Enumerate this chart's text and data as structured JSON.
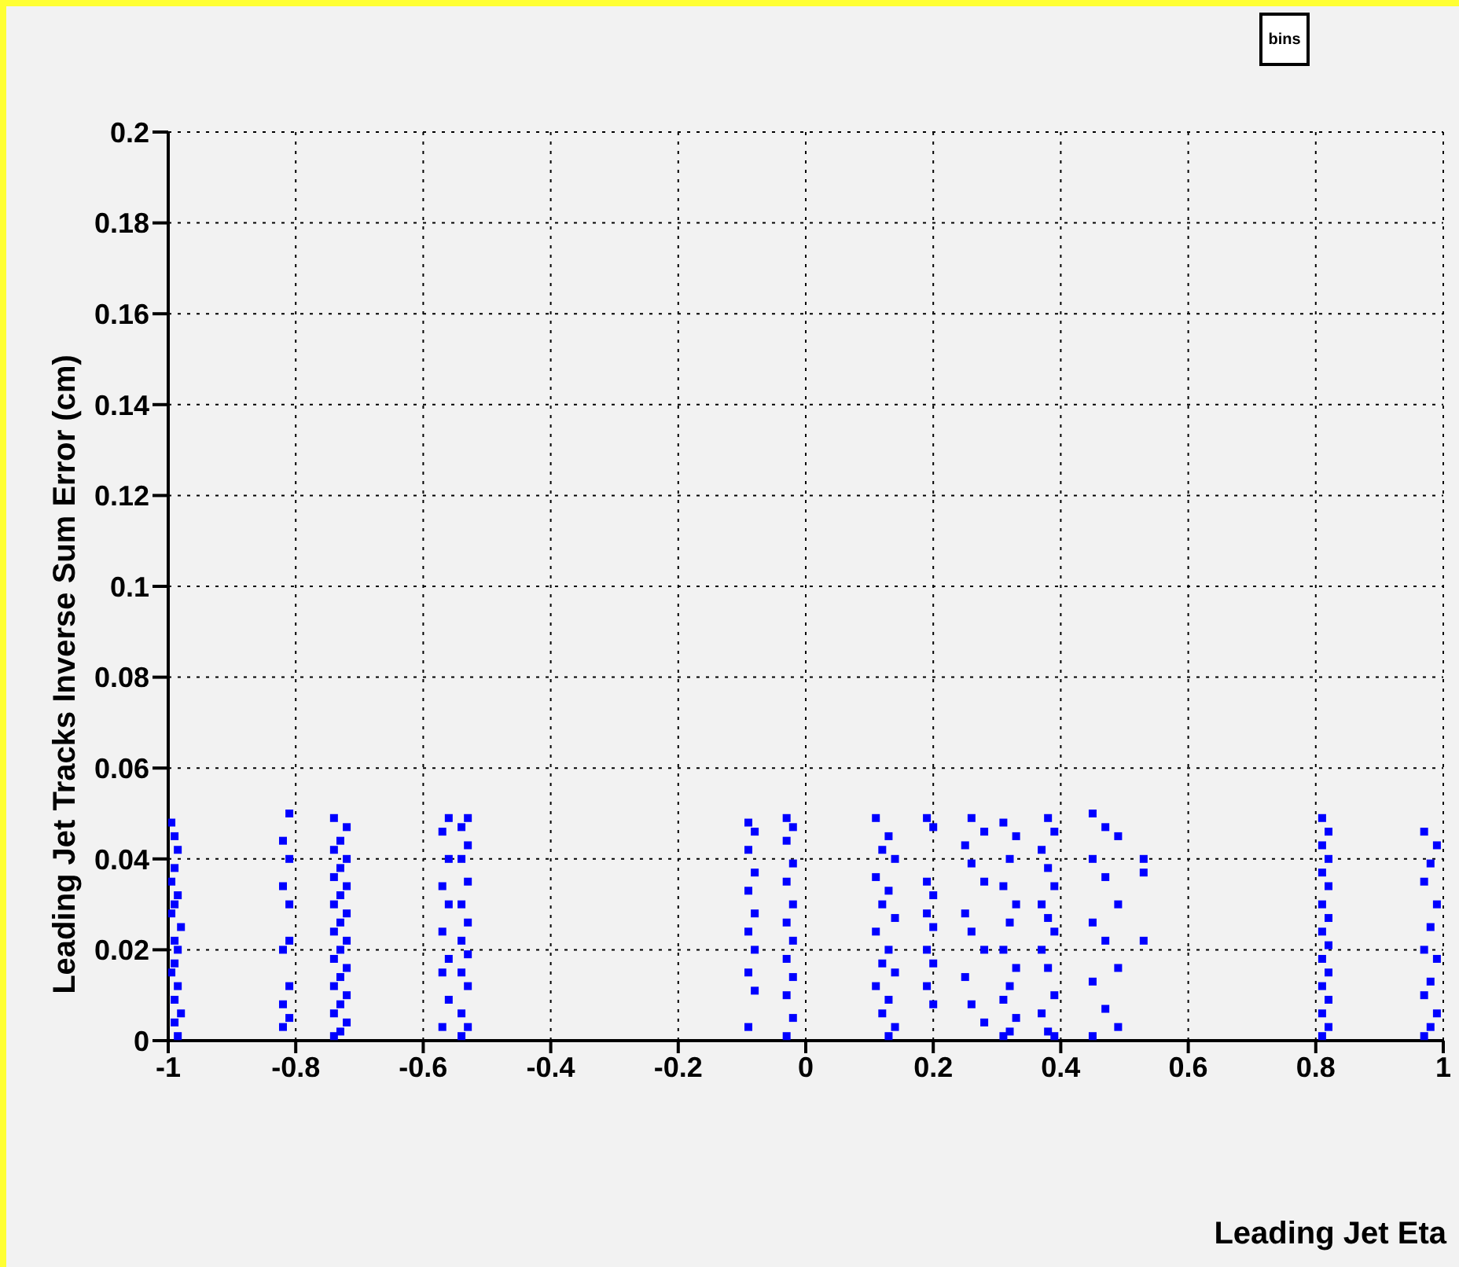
{
  "chart_data": {
    "type": "scatter",
    "title": "bins",
    "xlabel": "Leading Jet Eta",
    "ylabel": "Leading Jet Tracks Inverse Sum Error (cm)",
    "xlim": [
      -1,
      1
    ],
    "ylim": [
      0,
      0.2
    ],
    "xticks": [
      -1,
      -0.8,
      -0.6,
      -0.4,
      -0.2,
      0,
      0.2,
      0.4,
      0.6,
      0.8,
      1
    ],
    "yticks": [
      0,
      0.02,
      0.04,
      0.06,
      0.08,
      0.1,
      0.12,
      0.14,
      0.16,
      0.18,
      0.2
    ],
    "grid": true,
    "marker": "square",
    "series": [
      {
        "color": "#0000ff",
        "x": [
          -0.995,
          -0.99,
          -0.985,
          -0.99,
          -0.995,
          -0.985,
          -0.99,
          -0.995,
          -0.98,
          -0.99,
          -0.985,
          -0.99,
          -0.995,
          -0.985,
          -0.99,
          -0.98,
          -0.99,
          -0.985
        ],
        "values": [
          0.048,
          0.045,
          0.042,
          0.038,
          0.035,
          0.032,
          0.03,
          0.028,
          0.025,
          0.022,
          0.02,
          0.017,
          0.015,
          0.012,
          0.009,
          0.006,
          0.004,
          0.001
        ]
      },
      {
        "color": "#0000ff",
        "x": [
          -0.81,
          -0.82,
          -0.81,
          -0.82,
          -0.81,
          -0.81,
          -0.82,
          -0.81,
          -0.82,
          -0.81,
          -0.82
        ],
        "values": [
          0.05,
          0.044,
          0.04,
          0.034,
          0.03,
          0.022,
          0.02,
          0.012,
          0.008,
          0.005,
          0.003
        ]
      },
      {
        "color": "#0000ff",
        "x": [
          -0.74,
          -0.72,
          -0.73,
          -0.74,
          -0.72,
          -0.73,
          -0.74,
          -0.72,
          -0.73,
          -0.74,
          -0.72,
          -0.73,
          -0.74,
          -0.72,
          -0.73,
          -0.74,
          -0.72,
          -0.73,
          -0.74,
          -0.72,
          -0.73,
          -0.74,
          -0.72,
          -0.73,
          -0.74
        ],
        "values": [
          0.049,
          0.047,
          0.044,
          0.042,
          0.04,
          0.038,
          0.036,
          0.034,
          0.032,
          0.03,
          0.028,
          0.026,
          0.024,
          0.022,
          0.02,
          0.018,
          0.016,
          0.014,
          0.012,
          0.01,
          0.008,
          0.006,
          0.004,
          0.002,
          0.001
        ]
      },
      {
        "color": "#0000ff",
        "x": [
          -0.56,
          -0.57,
          -0.56,
          -0.57,
          -0.56,
          -0.57,
          -0.56,
          -0.57,
          -0.56,
          -0.57
        ],
        "values": [
          0.049,
          0.046,
          0.04,
          0.034,
          0.03,
          0.024,
          0.018,
          0.015,
          0.009,
          0.003
        ]
      },
      {
        "color": "#0000ff",
        "x": [
          -0.53,
          -0.54,
          -0.53,
          -0.54,
          -0.53,
          -0.54,
          -0.53,
          -0.54,
          -0.53,
          -0.54,
          -0.53,
          -0.54,
          -0.53,
          -0.54
        ],
        "values": [
          0.049,
          0.047,
          0.043,
          0.04,
          0.035,
          0.03,
          0.026,
          0.022,
          0.019,
          0.015,
          0.012,
          0.006,
          0.003,
          0.001
        ]
      },
      {
        "color": "#0000ff",
        "x": [
          -0.09,
          -0.08,
          -0.09,
          -0.08,
          -0.09,
          -0.08,
          -0.09,
          -0.08,
          -0.09,
          -0.08,
          -0.09
        ],
        "values": [
          0.048,
          0.046,
          0.042,
          0.037,
          0.033,
          0.028,
          0.024,
          0.02,
          0.015,
          0.011,
          0.003
        ]
      },
      {
        "color": "#0000ff",
        "x": [
          -0.03,
          -0.02,
          -0.03,
          -0.02,
          -0.03,
          -0.02,
          -0.03,
          -0.02,
          -0.03,
          -0.02,
          -0.03,
          -0.02,
          -0.03
        ],
        "values": [
          0.049,
          0.047,
          0.044,
          0.039,
          0.035,
          0.03,
          0.026,
          0.022,
          0.018,
          0.014,
          0.01,
          0.005,
          0.001
        ]
      },
      {
        "color": "#0000ff",
        "x": [
          0.11,
          0.13,
          0.12,
          0.14,
          0.11,
          0.13,
          0.12,
          0.14,
          0.11,
          0.13,
          0.12,
          0.14,
          0.11,
          0.13,
          0.12,
          0.14,
          0.13
        ],
        "values": [
          0.049,
          0.045,
          0.042,
          0.04,
          0.036,
          0.033,
          0.03,
          0.027,
          0.024,
          0.02,
          0.017,
          0.015,
          0.012,
          0.009,
          0.006,
          0.003,
          0.001
        ]
      },
      {
        "color": "#0000ff",
        "x": [
          0.19,
          0.2,
          0.19,
          0.2,
          0.19,
          0.2,
          0.19,
          0.2,
          0.19,
          0.2
        ],
        "values": [
          0.049,
          0.047,
          0.035,
          0.032,
          0.028,
          0.025,
          0.02,
          0.017,
          0.012,
          0.008
        ]
      },
      {
        "color": "#0000ff",
        "x": [
          0.26,
          0.28,
          0.25,
          0.26,
          0.28,
          0.25,
          0.26,
          0.28,
          0.25,
          0.26,
          0.28
        ],
        "values": [
          0.049,
          0.046,
          0.043,
          0.039,
          0.035,
          0.028,
          0.024,
          0.02,
          0.014,
          0.008,
          0.004
        ]
      },
      {
        "color": "#0000ff",
        "x": [
          0.31,
          0.33,
          0.32,
          0.31,
          0.33,
          0.32,
          0.31,
          0.33,
          0.32,
          0.31,
          0.33,
          0.32,
          0.31
        ],
        "values": [
          0.048,
          0.045,
          0.04,
          0.034,
          0.03,
          0.026,
          0.02,
          0.016,
          0.012,
          0.009,
          0.005,
          0.002,
          0.001
        ]
      },
      {
        "color": "#0000ff",
        "x": [
          0.38,
          0.39,
          0.37,
          0.38,
          0.39,
          0.37,
          0.38,
          0.39,
          0.37,
          0.38,
          0.39,
          0.37,
          0.38,
          0.39
        ],
        "values": [
          0.049,
          0.046,
          0.042,
          0.038,
          0.034,
          0.03,
          0.027,
          0.024,
          0.02,
          0.016,
          0.01,
          0.006,
          0.002,
          0.001
        ]
      },
      {
        "color": "#0000ff",
        "x": [
          0.45,
          0.47,
          0.49,
          0.45,
          0.47,
          0.49,
          0.45,
          0.47,
          0.49,
          0.45,
          0.47,
          0.49,
          0.45
        ],
        "values": [
          0.05,
          0.047,
          0.045,
          0.04,
          0.036,
          0.03,
          0.026,
          0.022,
          0.016,
          0.013,
          0.007,
          0.003,
          0.001
        ]
      },
      {
        "color": "#0000ff",
        "x": [
          0.53,
          0.53,
          0.53
        ],
        "values": [
          0.04,
          0.037,
          0.022
        ]
      },
      {
        "color": "#0000ff",
        "x": [
          0.81,
          0.82,
          0.81,
          0.82,
          0.81,
          0.82,
          0.81,
          0.82,
          0.81,
          0.82,
          0.81,
          0.82,
          0.81,
          0.82,
          0.81,
          0.82,
          0.81
        ],
        "values": [
          0.049,
          0.046,
          0.043,
          0.04,
          0.037,
          0.034,
          0.03,
          0.027,
          0.024,
          0.021,
          0.018,
          0.015,
          0.012,
          0.009,
          0.006,
          0.003,
          0.001
        ]
      },
      {
        "color": "#0000ff",
        "x": [
          0.97,
          0.99,
          0.98,
          0.97,
          0.99,
          0.98,
          0.97,
          0.99,
          0.98,
          0.97,
          0.99,
          0.98,
          0.97
        ],
        "values": [
          0.046,
          0.043,
          0.039,
          0.035,
          0.03,
          0.025,
          0.02,
          0.018,
          0.013,
          0.01,
          0.006,
          0.003,
          0.001
        ]
      }
    ]
  }
}
